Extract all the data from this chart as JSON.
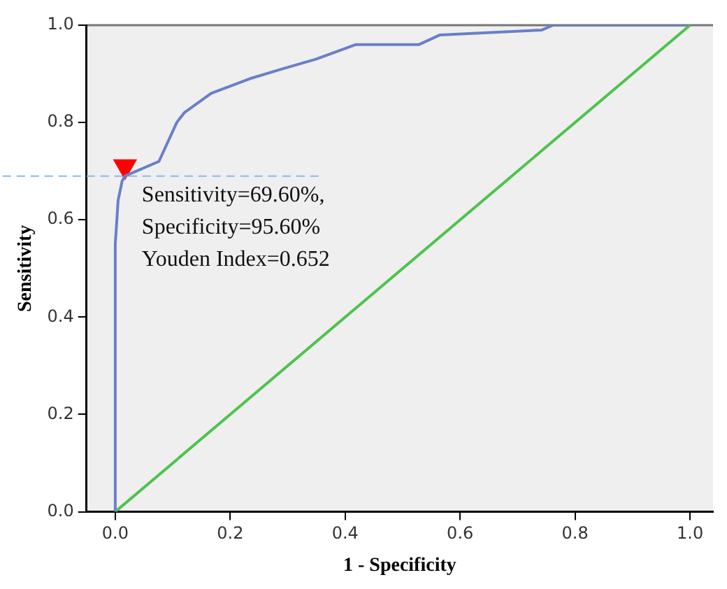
{
  "chart_data": {
    "type": "line",
    "xlabel": "1 - Specificity",
    "ylabel": "Sensitivity",
    "xlim": [
      -0.05,
      1.04
    ],
    "xticks": [
      {
        "value": 0,
        "label": "0.0"
      },
      0.2,
      0.4,
      0.6,
      0.8,
      {
        "value": 1,
        "label": "1.0"
      }
    ],
    "ylim": [
      0,
      1
    ],
    "yticks": [
      {
        "value": 0,
        "label": "0.0"
      },
      0.2,
      0.4,
      0.6,
      0.8,
      {
        "value": 1,
        "label": "1.0"
      }
    ],
    "grid": false,
    "legend": false,
    "marker": "none",
    "line_style": "solid",
    "series": [
      {
        "type": "line",
        "color": "#6a7fc8",
        "x": [
          0,
          0,
          0.005,
          0.012,
          0.017,
          0.076,
          0.107,
          0.12,
          0.167,
          0.234,
          0.29,
          0.349,
          0.418,
          0.528,
          0.565,
          0.742,
          0.762,
          0.995
        ],
        "values": [
          0,
          0.55,
          0.64,
          0.68,
          0.69,
          0.72,
          0.8,
          0.82,
          0.86,
          0.89,
          0.91,
          0.93,
          0.96,
          0.96,
          0.98,
          0.99,
          1.0,
          1.0
        ]
      },
      {
        "type": "line",
        "color": "#4cc44c",
        "x": [
          0,
          1
        ],
        "values": [
          0,
          1
        ]
      },
      {
        "type": "scatter",
        "marker": "triangle",
        "color": "#ff0000",
        "x": [
          0.017
        ],
        "values": [
          0.71
        ]
      }
    ],
    "ref_lines": [
      {
        "axis": "y",
        "value": 0.69,
        "color": "#8ab8e8",
        "line_style": "dashed"
      }
    ],
    "annotations": [
      "Sensitivity=69.60%,",
      "Specificity=95.60%",
      "Youden Index=0.652"
    ]
  }
}
